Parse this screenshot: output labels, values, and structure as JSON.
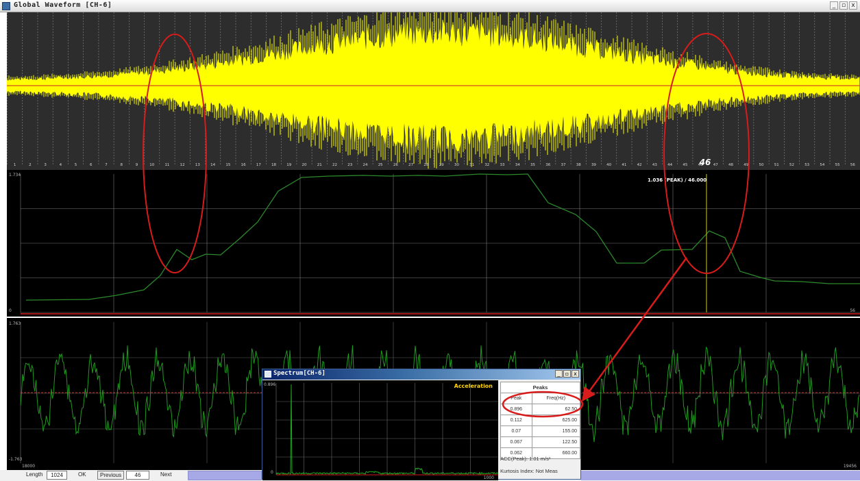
{
  "global_window": {
    "title": "Global Waveform [CH-6]",
    "buttons": {
      "minimize": "_",
      "restore": "▫",
      "close": "x"
    },
    "marker_label": "46",
    "segment_numbers": [
      "1",
      "2",
      "3",
      "4",
      "5",
      "6",
      "7",
      "8",
      "9",
      "10",
      "11",
      "12",
      "13",
      "14",
      "15",
      "16",
      "17",
      "18",
      "19",
      "20",
      "21",
      "22",
      "23",
      "24",
      "25",
      "26",
      "27",
      "28",
      "29",
      "30",
      "31",
      "32",
      "33",
      "34",
      "35",
      "36",
      "37",
      "38",
      "39",
      "40",
      "41",
      "42",
      "43",
      "44",
      "45",
      "46",
      "47",
      "48",
      "49",
      "50",
      "51",
      "52",
      "53",
      "54",
      "55",
      "56"
    ]
  },
  "trend_panel": {
    "y_top_label": "1.734",
    "y_bottom_label": "0",
    "x_right_label": "56",
    "cursor_readout": "1.036 (PEAK) / 46.000"
  },
  "wave_panel": {
    "y_top_label": "1.763",
    "y_bottom_label": "-1.763",
    "x_left_label": "18000",
    "x_right_label": "19456"
  },
  "toolbar": {
    "length_label": "Length",
    "length_value": "1024",
    "ok_label": "OK",
    "previous_label": "Previous",
    "index_value": "46",
    "next_label": "Next"
  },
  "spectrum_window": {
    "title": "Spectrum[CH-6]",
    "buttons": {
      "minimize": "_",
      "restore": "▫",
      "close": "x"
    },
    "y_top_label": "0.896",
    "y_bottom_label": "0",
    "x_right_label": "1000",
    "mode_label": "Acceleration",
    "peaks_title": "Peaks",
    "col_peak": "Peak",
    "col_freq": "Freq(Hz)",
    "peaks": [
      {
        "peak": "0.896",
        "freq": "62.50"
      },
      {
        "peak": "0.112",
        "freq": "625.00"
      },
      {
        "peak": "0.07",
        "freq": "155.00"
      },
      {
        "peak": "0.067",
        "freq": "122.50"
      },
      {
        "peak": "0.062",
        "freq": "660.00"
      }
    ],
    "acc_peak": "ACC(Peak): 1.01 m/s²",
    "kurtosis": "Kurtosis Index: Not Meas"
  },
  "colors": {
    "global_signal": "#ffff00",
    "global_bg": "#2d2d2d",
    "trend_line": "#2b8a2b",
    "wave_signal": "#1f9a1f",
    "cursor": "#b5a818",
    "annotation": "#d81c1c"
  }
}
